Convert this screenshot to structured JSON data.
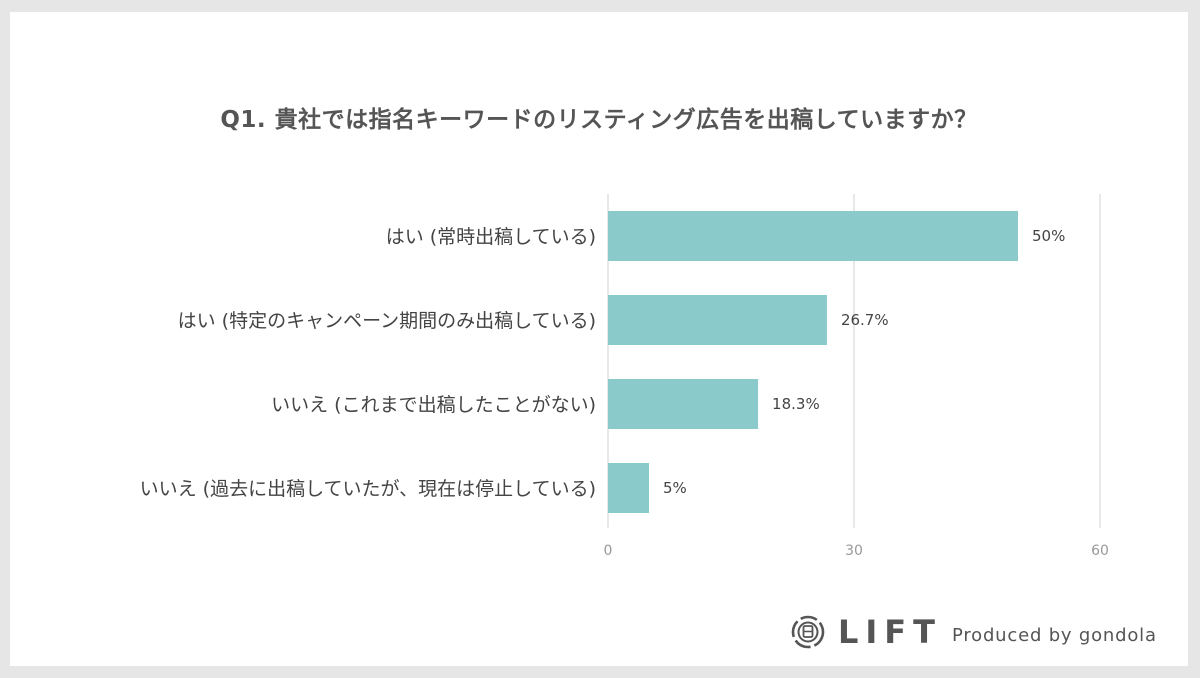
{
  "chart_data": {
    "type": "bar",
    "orientation": "horizontal",
    "title": "Q1. 貴社では指名キーワードのリスティング広告を出稿していますか？",
    "categories": [
      "はい (常時出稿している)",
      "はい (特定のキャンペーン期間のみ出稿している)",
      "いいえ (これまで出稿したことがない)",
      "いいえ (過去に出稿していたが、現在は停止している)"
    ],
    "values": [
      50,
      26.7,
      18.3,
      5
    ],
    "value_labels": [
      "50%",
      "26.7%",
      "18.3%",
      "5%"
    ],
    "xlim": [
      0,
      60
    ],
    "xticks": [
      "0",
      "30",
      "60"
    ],
    "bar_color": "#8bcacb",
    "grid_color": "#d9d9d9",
    "xlabel": "",
    "ylabel": ""
  },
  "branding": {
    "logo_text": "LIFT",
    "produced_by": "Produced by gondola"
  }
}
